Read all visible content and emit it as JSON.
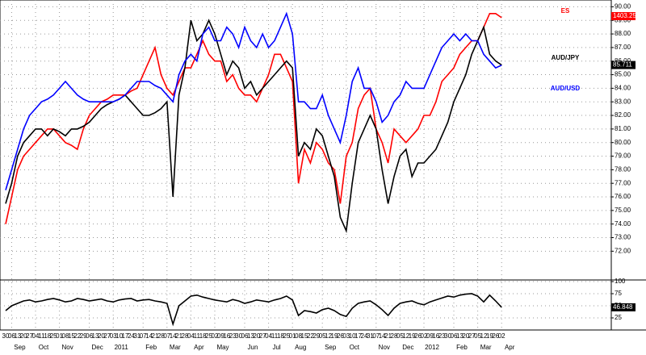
{
  "chart_data": [
    {
      "type": "line",
      "categories": [
        "30",
        "06",
        "13",
        "20",
        "27",
        "04",
        "11",
        "18",
        "25",
        "01",
        "08",
        "15",
        "22",
        "29",
        "06",
        "13",
        "20",
        "27",
        "03",
        "10",
        "17",
        "24",
        "31",
        "07",
        "14",
        "21",
        "28",
        "07",
        "14",
        "21",
        "28",
        "04",
        "11",
        "18",
        "25",
        "02",
        "09",
        "16",
        "23",
        "30",
        "06",
        "13",
        "20",
        "27",
        "04",
        "11",
        "18",
        "25",
        "01",
        "08",
        "15",
        "22",
        "29",
        "05",
        "12",
        "19",
        "26",
        "03",
        "10",
        "17",
        "24",
        "31",
        "07",
        "14",
        "21",
        "28",
        "05",
        "12",
        "19",
        "26",
        "02",
        "09",
        "16",
        "23",
        "30",
        "06",
        "13",
        "20",
        "27",
        "05",
        "12",
        "19",
        "26",
        "02"
      ],
      "month_labels": [
        null,
        "Sep",
        null,
        null,
        null,
        "Oct",
        null,
        null,
        null,
        "Nov",
        null,
        null,
        null,
        null,
        "Dec",
        null,
        null,
        null,
        "2011",
        null,
        null,
        null,
        null,
        "Feb",
        null,
        null,
        null,
        "Mar",
        null,
        null,
        null,
        "Apr",
        null,
        null,
        null,
        "May",
        null,
        null,
        null,
        null,
        "Jun",
        null,
        null,
        null,
        "Jul",
        null,
        null,
        null,
        "Aug",
        null,
        null,
        null,
        null,
        "Sep",
        null,
        null,
        null,
        "Oct",
        null,
        null,
        null,
        null,
        "Nov",
        null,
        null,
        null,
        "Dec",
        null,
        null,
        null,
        "2012",
        null,
        null,
        null,
        null,
        "Feb",
        null,
        null,
        null,
        "Mar",
        null,
        null,
        null,
        "Apr"
      ],
      "series": [
        {
          "name": "ES",
          "color": "#ff0000",
          "last_label": "1403.25",
          "values": [
            74,
            76,
            78,
            79,
            79.5,
            80,
            80.5,
            81,
            81,
            80.5,
            80,
            79.8,
            79.5,
            81,
            82,
            82.5,
            83,
            83.2,
            83.5,
            83.5,
            83.5,
            83.8,
            84,
            85,
            86,
            87,
            85,
            84,
            83.5,
            84.5,
            85.5,
            85.5,
            86.5,
            87.5,
            86.5,
            86,
            86,
            84.5,
            85,
            84,
            83.5,
            83.5,
            83,
            84,
            85,
            86.5,
            86.5,
            85.5,
            84.5,
            77,
            79.5,
            78.5,
            80,
            79.5,
            78.5,
            78,
            75.5,
            79,
            80,
            82.5,
            83.5,
            84,
            81,
            80,
            78.5,
            81,
            80.5,
            80,
            80.5,
            81,
            82,
            82,
            83,
            84.5,
            85,
            85.5,
            86.5,
            87,
            87.5,
            87.5,
            88.5,
            89.5,
            89.5,
            89.2
          ]
        },
        {
          "name": "AUD/JPY",
          "color": "#000000",
          "values": [
            75.5,
            77,
            79,
            80,
            80.5,
            81,
            81,
            80.5,
            81,
            80.8,
            80.5,
            81,
            81,
            81.2,
            81.5,
            82,
            82.5,
            82.8,
            83,
            83.2,
            83.5,
            83,
            82.5,
            82,
            82,
            82.2,
            82.5,
            83,
            76,
            83.5,
            85.5,
            89,
            87.5,
            88,
            89,
            88,
            86.5,
            85,
            86,
            85.5,
            84,
            84.5,
            83.5,
            84,
            84.5,
            85,
            85.5,
            86,
            85.5,
            79,
            80,
            79.5,
            81,
            80.5,
            79,
            77.5,
            74.5,
            73.5,
            77,
            80,
            81,
            82,
            81,
            78,
            75.5,
            77.5,
            79,
            79.5,
            77.5,
            78.5,
            78.5,
            79,
            79.5,
            80.5,
            81.5,
            83,
            84,
            85,
            86.5,
            87.5,
            88.5,
            86.5,
            86,
            85.711
          ]
        },
        {
          "name": "AUD/USD",
          "color": "#0000ff",
          "values": [
            76.5,
            78,
            79.5,
            81,
            82,
            82.5,
            83,
            83.2,
            83.5,
            84,
            84.5,
            84,
            83.5,
            83.2,
            83,
            83,
            83,
            83,
            83,
            83.2,
            83.5,
            84,
            84.5,
            84.5,
            84.5,
            84.2,
            84,
            83.5,
            83,
            85,
            86,
            86.5,
            86,
            88,
            88.5,
            87.5,
            87.5,
            88.5,
            88,
            87,
            88.5,
            87.5,
            87,
            88,
            87,
            87.5,
            88.5,
            89.5,
            88,
            83,
            83,
            82.5,
            82.5,
            83.5,
            82,
            81,
            80,
            82,
            84.5,
            85.5,
            84,
            84,
            83,
            81.5,
            82,
            83,
            83.5,
            84.5,
            84,
            84,
            84,
            85,
            86,
            87,
            87.5,
            88,
            87.5,
            88,
            87.5,
            87.5,
            86.5,
            86,
            85.5,
            85.7
          ]
        }
      ],
      "ylim": [
        70,
        90.5
      ],
      "yticks": [
        {
          "value": 72,
          "label": "72.00"
        },
        {
          "value": 73,
          "label": "73.00"
        },
        {
          "value": 74,
          "label": "74.00"
        },
        {
          "value": 75,
          "label": "75.00"
        },
        {
          "value": 76,
          "label": "76.00"
        },
        {
          "value": 77,
          "label": "77.00"
        },
        {
          "value": 78,
          "label": "78.00"
        },
        {
          "value": 79,
          "label": "79.00"
        },
        {
          "value": 80,
          "label": "80.00"
        },
        {
          "value": 81,
          "label": "81.00"
        },
        {
          "value": 82,
          "label": "82.00"
        },
        {
          "value": 83,
          "label": "83.00"
        },
        {
          "value": 84,
          "label": "84.00"
        },
        {
          "value": 85,
          "label": "85.00"
        },
        {
          "value": 86,
          "label": "86.00"
        },
        {
          "value": 87,
          "label": "87.00"
        },
        {
          "value": 88,
          "label": "88.00"
        },
        {
          "value": 89,
          "label": "89.00"
        },
        {
          "value": 90,
          "label": "90.00"
        }
      ],
      "grid": true
    },
    {
      "type": "line",
      "series": [
        {
          "color": "#000000",
          "values": [
            40,
            50,
            55,
            60,
            62,
            58,
            60,
            63,
            65,
            62,
            58,
            60,
            65,
            63,
            60,
            62,
            64,
            60,
            58,
            62,
            64,
            65,
            60,
            62,
            63,
            60,
            58,
            55,
            12,
            50,
            60,
            70,
            72,
            68,
            65,
            62,
            60,
            58,
            63,
            60,
            55,
            58,
            62,
            60,
            58,
            62,
            65,
            70,
            62,
            30,
            40,
            38,
            35,
            42,
            45,
            40,
            32,
            28,
            45,
            55,
            58,
            60,
            52,
            42,
            30,
            45,
            55,
            58,
            60,
            55,
            52,
            58,
            62,
            66,
            70,
            68,
            72,
            74,
            75,
            70,
            58,
            72,
            60,
            46.848
          ]
        }
      ],
      "ylim": [
        0,
        100
      ],
      "yticks": [
        25,
        50,
        75,
        100
      ],
      "grid": true
    }
  ]
}
